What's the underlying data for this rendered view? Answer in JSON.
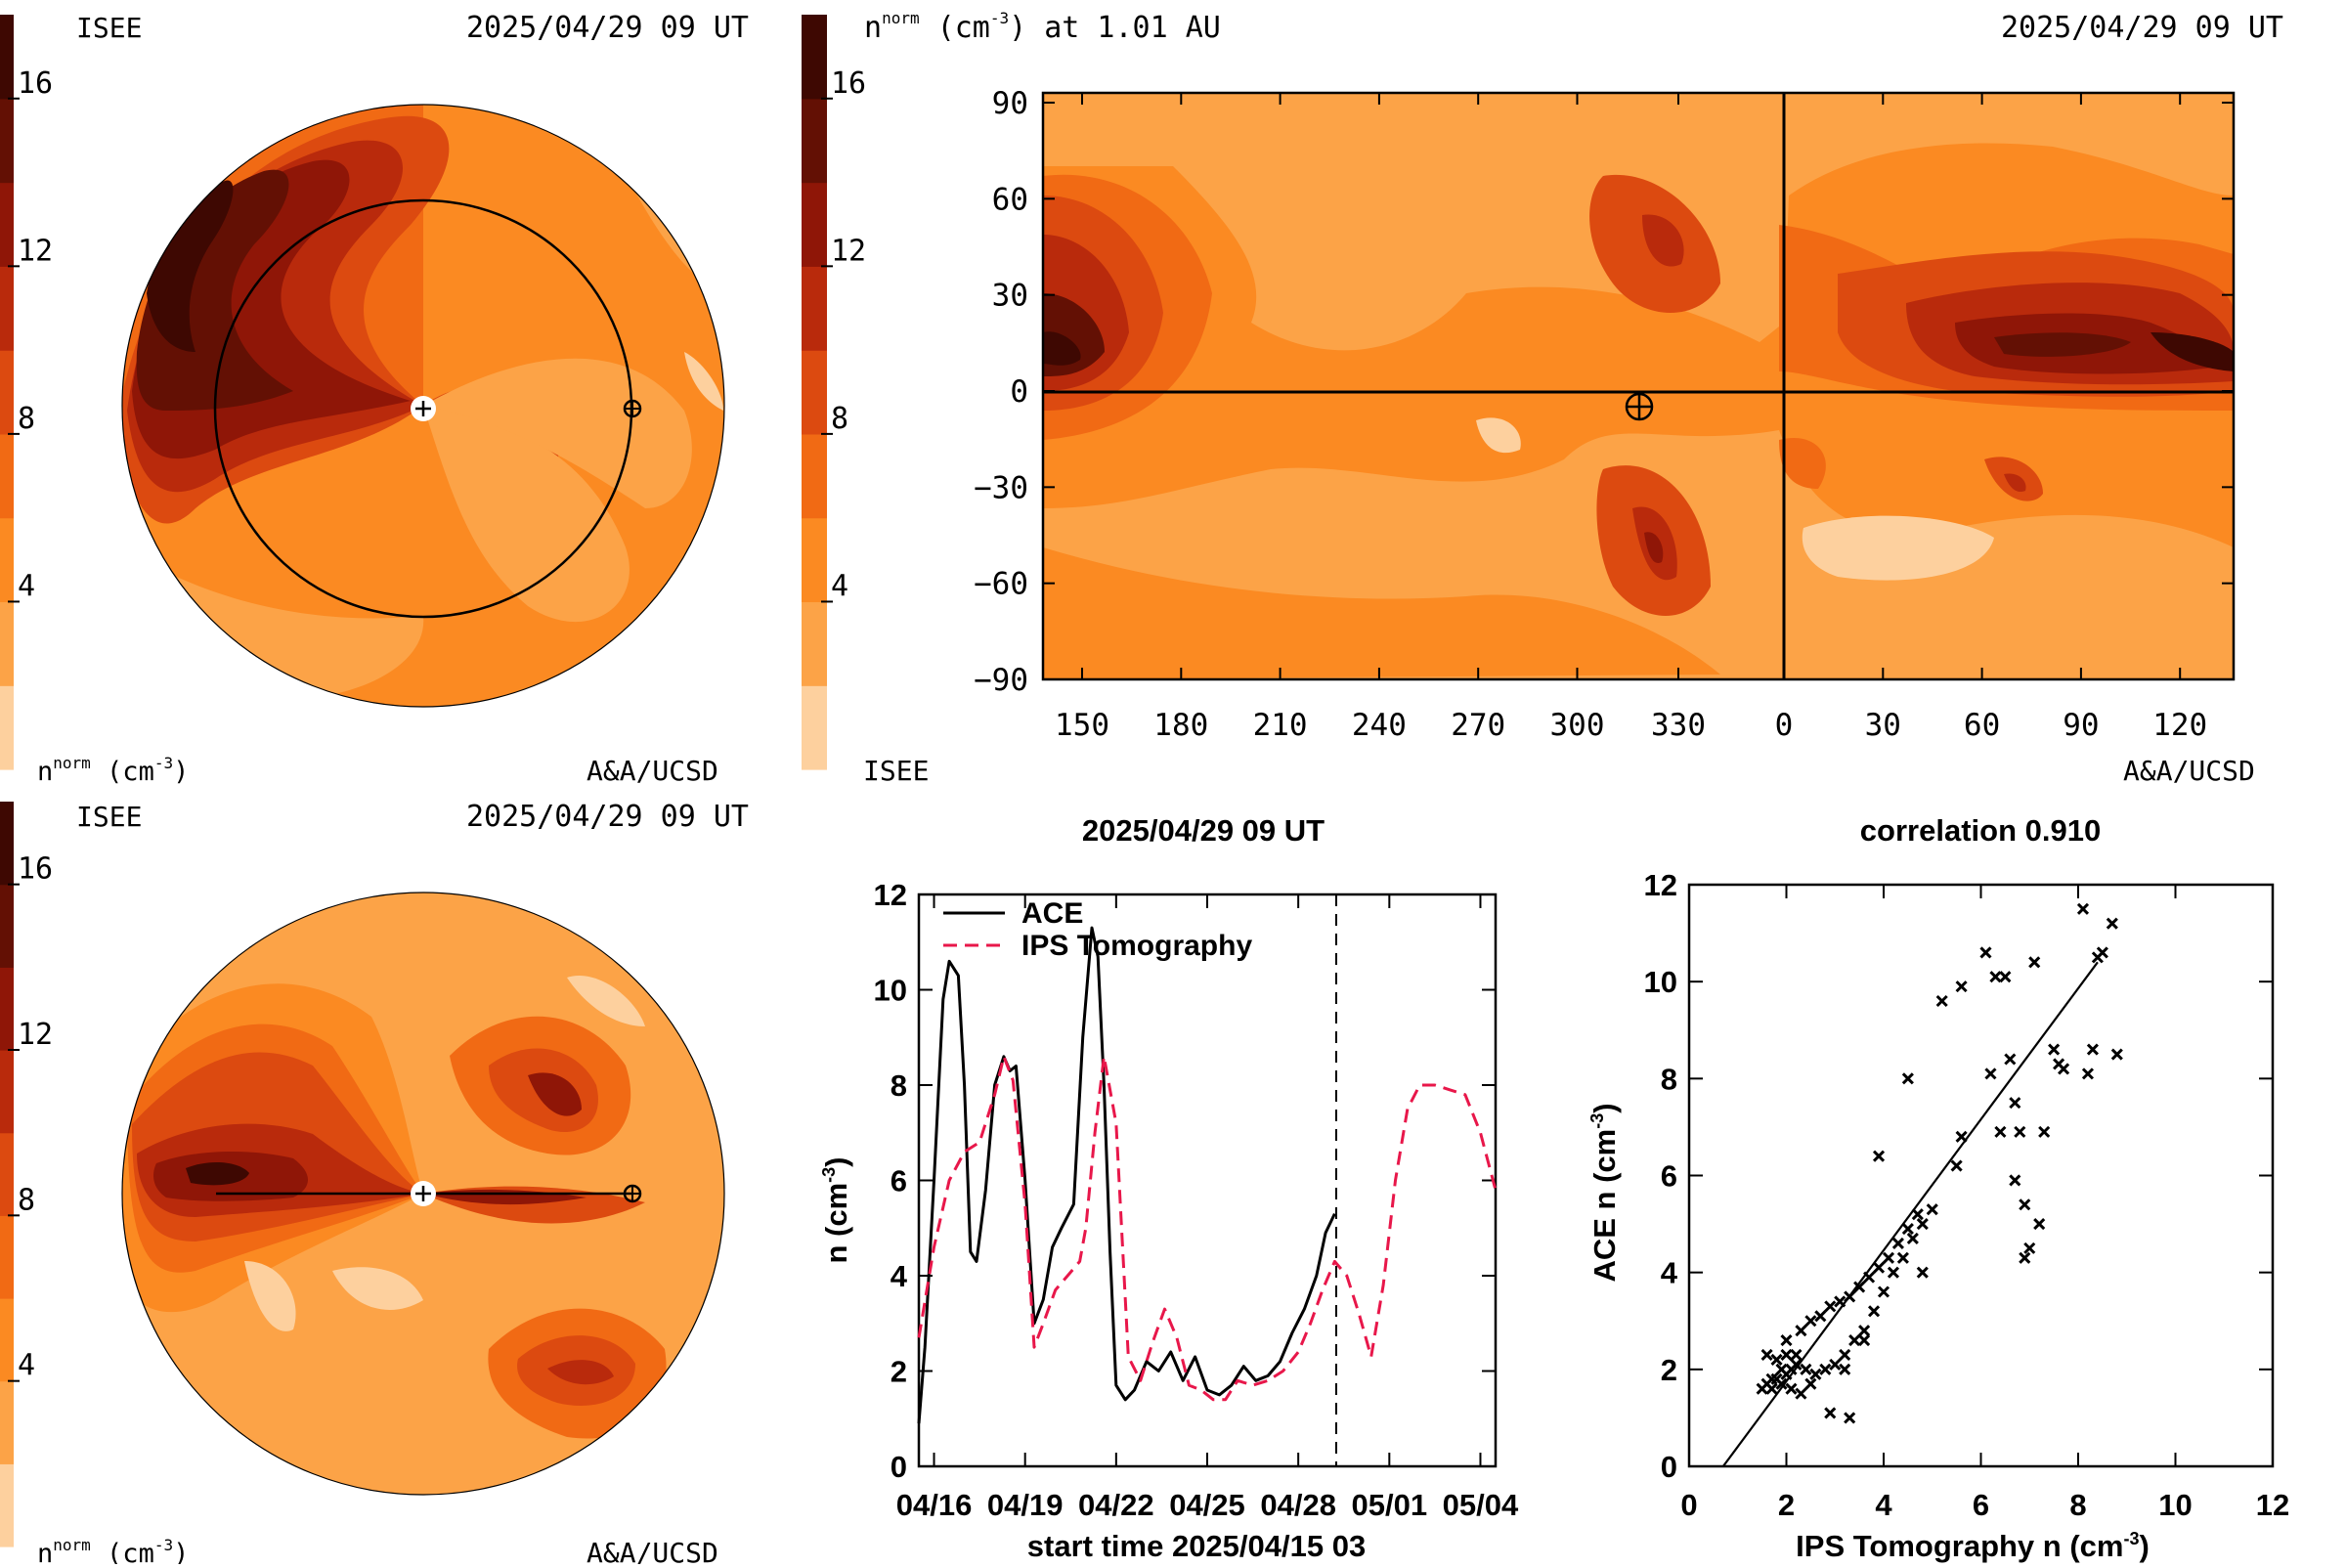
{
  "colors": {
    "levels": [
      "#fdd09e",
      "#fca347",
      "#fb8a22",
      "#f16a14",
      "#dc4a10",
      "#b92a0c",
      "#8f1607",
      "#631004",
      "#3e0802"
    ],
    "ace_line": "#000000",
    "ips_line": "#e8174a"
  },
  "colorbar": {
    "ticks": [
      "4",
      "8",
      "12",
      "16"
    ],
    "tick_values": [
      4,
      8,
      12,
      16
    ],
    "min": 0,
    "max": 18
  },
  "panel_top_left": {
    "org_left": "ISEE",
    "date": "2025/04/29 09 UT",
    "unit_label": "n",
    "unit_sup": "norm",
    "unit_rest": " (cm",
    "unit_exp": "-3",
    "unit_close": ")",
    "credit": "A&A/UCSD"
  },
  "panel_bottom_left": {
    "org_left": "ISEE",
    "date": "2025/04/29 09 UT",
    "unit_label": "n",
    "unit_sup": "norm",
    "unit_rest": " (cm",
    "unit_exp": "-3",
    "unit_close": ")",
    "credit": "A&A/UCSD"
  },
  "panel_map": {
    "title_n": "n",
    "title_sup": "norm",
    "title_rest": " (cm",
    "title_exp": "-3",
    "title_tail": ") at 1.01 AU",
    "date": "2025/04/29 09 UT",
    "org": "ISEE",
    "credit": "A&A/UCSD",
    "y_ticks": [
      "90",
      "60",
      "30",
      "0",
      "−30",
      "−60",
      "−90"
    ],
    "x_ticks": [
      "150",
      "180",
      "210",
      "240",
      "270",
      "300",
      "330",
      "0",
      "30",
      "60",
      "90",
      "120"
    ]
  },
  "chart_data": [
    {
      "type": "line",
      "title": "2025/04/29 09 UT",
      "xlabel": "start time 2025/04/15 03",
      "ylabel": "n (cm-3)",
      "x_tick_labels": [
        "04/16",
        "04/19",
        "04/22",
        "04/25",
        "04/28",
        "05/01",
        "05/04"
      ],
      "y_tick_labels": [
        "0",
        "2",
        "4",
        "6",
        "8",
        "10",
        "12"
      ],
      "ylim": [
        0,
        12
      ],
      "xlim_days": [
        0.5,
        19.5
      ],
      "now_marker_day": 14.25,
      "legend": [
        "ACE",
        "IPS Tomography"
      ],
      "series": [
        {
          "name": "ACE",
          "x": [
            0.5,
            0.7,
            1.0,
            1.3,
            1.5,
            1.8,
            2.0,
            2.2,
            2.4,
            2.7,
            3.0,
            3.3,
            3.5,
            3.7,
            4.0,
            4.3,
            4.6,
            4.9,
            5.2,
            5.6,
            5.9,
            6.2,
            6.4,
            6.6,
            6.8,
            7.0,
            7.3,
            7.6,
            8.0,
            8.4,
            8.8,
            9.2,
            9.6,
            10.0,
            10.4,
            10.8,
            11.2,
            11.6,
            12.0,
            12.4,
            12.8,
            13.2,
            13.6,
            13.9,
            14.2
          ],
          "values": [
            0.9,
            2.5,
            6.0,
            9.8,
            10.6,
            10.3,
            8.0,
            4.5,
            4.3,
            5.8,
            8.0,
            8.6,
            8.3,
            8.4,
            6.0,
            3.0,
            3.5,
            4.6,
            5.0,
            5.5,
            9.0,
            11.3,
            10.7,
            8.0,
            4.5,
            1.7,
            1.4,
            1.6,
            2.2,
            2.0,
            2.4,
            1.8,
            2.3,
            1.6,
            1.5,
            1.7,
            2.1,
            1.8,
            1.9,
            2.2,
            2.8,
            3.3,
            4.0,
            4.9,
            5.3
          ]
        },
        {
          "name": "IPS Tomography",
          "x": [
            0.5,
            1.0,
            1.5,
            2.0,
            2.5,
            3.0,
            3.3,
            3.6,
            4.0,
            4.3,
            4.6,
            5.0,
            5.4,
            5.8,
            6.0,
            6.3,
            6.6,
            7.0,
            7.4,
            7.8,
            8.2,
            8.6,
            9.0,
            9.4,
            9.8,
            10.2,
            10.6,
            11.0,
            11.5,
            12.0,
            12.5,
            13.0,
            13.4,
            13.8,
            14.2,
            14.6,
            15.0,
            15.4,
            15.8,
            16.2,
            16.6,
            17.0,
            17.5,
            18.0,
            18.5,
            19.0,
            19.5
          ],
          "values": [
            2.7,
            4.6,
            6.0,
            6.6,
            6.8,
            7.8,
            8.6,
            8.1,
            5.5,
            2.5,
            3.0,
            3.7,
            4.0,
            4.3,
            5.0,
            7.0,
            8.6,
            7.2,
            2.3,
            1.8,
            2.6,
            3.3,
            2.7,
            1.7,
            1.6,
            1.4,
            1.4,
            1.8,
            1.7,
            1.8,
            2.0,
            2.4,
            3.0,
            3.7,
            4.3,
            4.0,
            3.2,
            2.3,
            3.8,
            6.0,
            7.5,
            8.0,
            8.0,
            7.9,
            7.8,
            7.0,
            5.8
          ]
        }
      ]
    },
    {
      "type": "scatter",
      "title": "correlation 0.910",
      "xlabel": "IPS Tomography n (cm-3)",
      "ylabel": "ACE n (cm-3)",
      "x_tick_labels": [
        "0",
        "2",
        "4",
        "6",
        "8",
        "10",
        "12"
      ],
      "y_tick_labels": [
        "0",
        "2",
        "4",
        "6",
        "8",
        "10",
        "12"
      ],
      "xlim": [
        0,
        12
      ],
      "ylim": [
        0,
        12
      ],
      "fit_line": {
        "x": [
          0.7,
          8.4
        ],
        "y": [
          -0.3,
          10.4
        ]
      },
      "points": [
        [
          1.5,
          1.6
        ],
        [
          1.6,
          1.7
        ],
        [
          1.7,
          1.6
        ],
        [
          1.8,
          1.8
        ],
        [
          1.9,
          1.7
        ],
        [
          2.0,
          1.9
        ],
        [
          2.1,
          2.0
        ],
        [
          2.2,
          2.1
        ],
        [
          1.6,
          2.3
        ],
        [
          1.8,
          2.2
        ],
        [
          2.0,
          2.3
        ],
        [
          2.2,
          2.3
        ],
        [
          2.4,
          2.0
        ],
        [
          2.6,
          1.9
        ],
        [
          2.8,
          2.0
        ],
        [
          3.0,
          2.1
        ],
        [
          3.2,
          2.3
        ],
        [
          3.4,
          2.6
        ],
        [
          3.6,
          2.8
        ],
        [
          3.8,
          3.2
        ],
        [
          4.0,
          3.6
        ],
        [
          4.2,
          4.0
        ],
        [
          4.4,
          4.3
        ],
        [
          4.6,
          4.7
        ],
        [
          4.8,
          5.0
        ],
        [
          5.0,
          5.3
        ],
        [
          2.0,
          2.6
        ],
        [
          2.3,
          2.8
        ],
        [
          2.5,
          3.0
        ],
        [
          2.7,
          3.1
        ],
        [
          2.9,
          3.3
        ],
        [
          3.1,
          3.4
        ],
        [
          3.3,
          3.5
        ],
        [
          3.5,
          3.7
        ],
        [
          3.7,
          3.9
        ],
        [
          3.9,
          4.1
        ],
        [
          4.1,
          4.3
        ],
        [
          4.3,
          4.6
        ],
        [
          4.5,
          4.9
        ],
        [
          4.7,
          5.2
        ],
        [
          1.7,
          1.8
        ],
        [
          1.9,
          2.0
        ],
        [
          2.1,
          1.6
        ],
        [
          2.3,
          1.5
        ],
        [
          2.5,
          1.7
        ],
        [
          3.6,
          2.6
        ],
        [
          3.2,
          2.0
        ],
        [
          2.9,
          1.1
        ],
        [
          3.3,
          1.0
        ],
        [
          3.9,
          6.4
        ],
        [
          4.5,
          8.0
        ],
        [
          4.8,
          4.0
        ],
        [
          5.2,
          9.6
        ],
        [
          5.5,
          6.2
        ],
        [
          5.6,
          6.8
        ],
        [
          5.6,
          9.9
        ],
        [
          6.1,
          10.6
        ],
        [
          6.2,
          8.1
        ],
        [
          6.3,
          10.1
        ],
        [
          6.4,
          6.9
        ],
        [
          6.5,
          10.1
        ],
        [
          6.6,
          8.4
        ],
        [
          6.7,
          7.5
        ],
        [
          6.7,
          5.9
        ],
        [
          6.8,
          6.9
        ],
        [
          6.9,
          5.4
        ],
        [
          6.9,
          4.3
        ],
        [
          7.0,
          4.5
        ],
        [
          7.1,
          10.4
        ],
        [
          7.2,
          5.0
        ],
        [
          7.3,
          6.9
        ],
        [
          7.5,
          8.6
        ],
        [
          7.6,
          8.3
        ],
        [
          7.7,
          8.2
        ],
        [
          8.1,
          11.5
        ],
        [
          8.2,
          8.1
        ],
        [
          8.3,
          8.6
        ],
        [
          8.4,
          10.5
        ],
        [
          8.5,
          10.6
        ],
        [
          8.7,
          11.2
        ],
        [
          8.8,
          8.5
        ]
      ]
    }
  ]
}
